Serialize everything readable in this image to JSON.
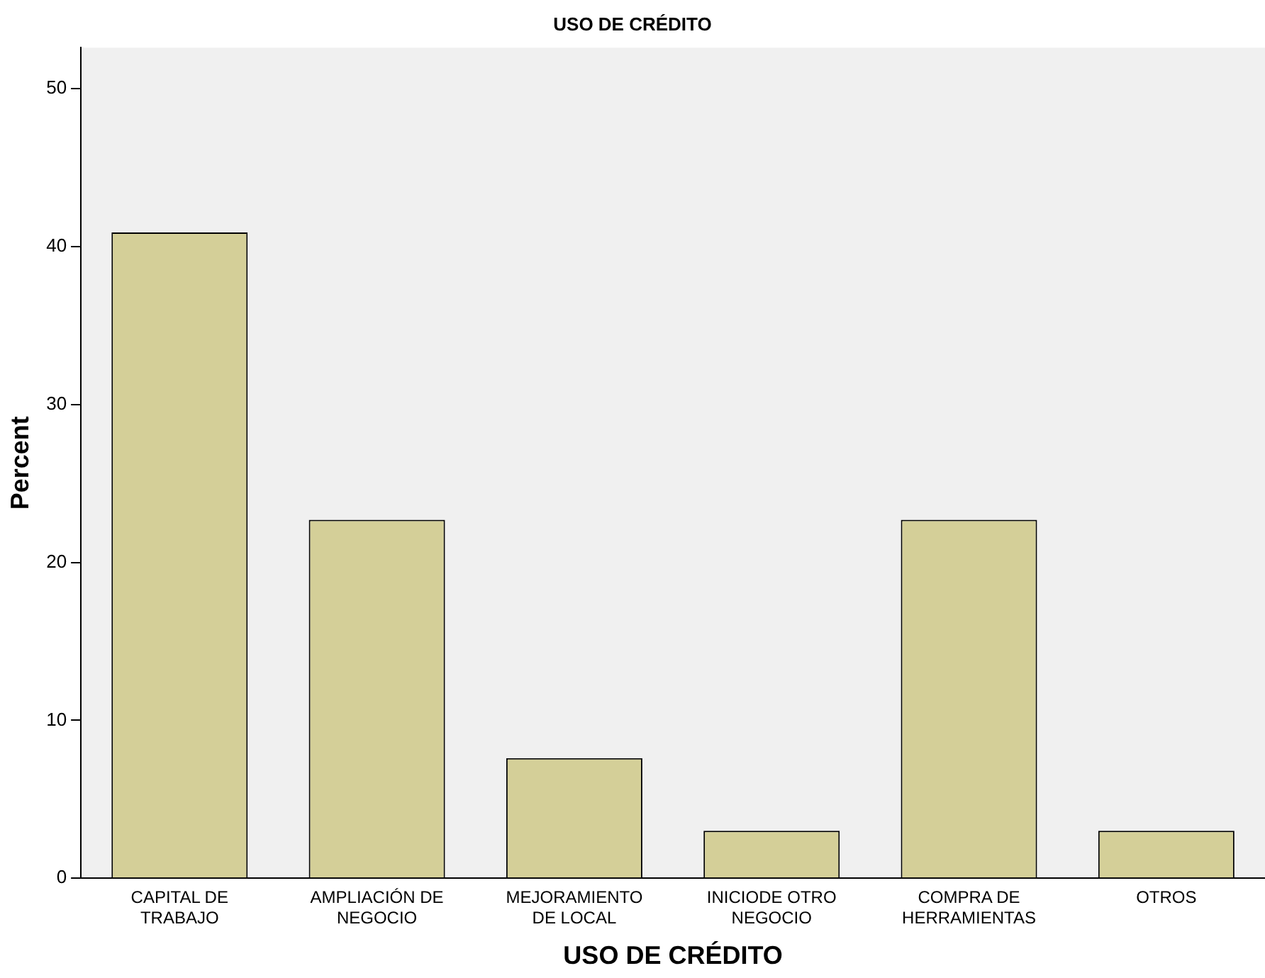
{
  "chart_data": {
    "type": "bar",
    "title": "USO DE CRÉDITO",
    "xlabel": "USO DE CRÉDITO",
    "ylabel": "Percent",
    "categories": [
      "CAPITAL DE\nTRABAJO",
      "AMPLIACIÓN DE\nNEGOCIO",
      "MEJORAMIENTO\nDE LOCAL",
      "INICIODE OTRO\nNEGOCIO",
      "COMPRA DE\nHERRAMIENTAS",
      "OTROS"
    ],
    "values": [
      40.9,
      22.7,
      7.6,
      3.0,
      22.7,
      3.0
    ],
    "color": "#d4cf98",
    "ylim": [
      0,
      52.6
    ],
    "yticks": [
      0,
      10,
      20,
      30,
      40,
      50
    ],
    "grid": false,
    "legend": false
  }
}
